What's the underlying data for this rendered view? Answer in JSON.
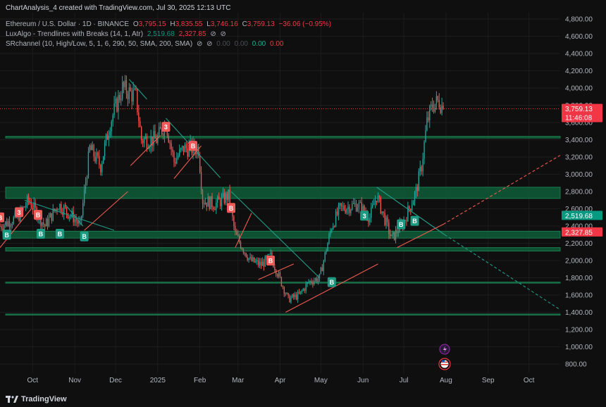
{
  "header": {
    "author_line": "ChartAnalysis_4 created with TradingView.com, Jul 30, 2025 12:13 UTC",
    "symbol": "Ethereum / U.S. Dollar · 1D · BINANCE",
    "o_label": "O",
    "o_value": "3,795.15",
    "h_label": "H",
    "h_value": "3,835.55",
    "l_label": "L",
    "l_value": "3,746.16",
    "c_label": "C",
    "c_value": "3,759.13",
    "change": "−36.06 (−0.95%)",
    "ind1_name": "LuxAlgo - Trendlines with Breaks (14, 1, Atr)",
    "ind1_v1": "2,519.68",
    "ind1_v2": "2,327.85",
    "ind2_name": "SRchannel (10, High/Low, 5, 1, 6, 290, 50, SMA, 200, SMA)",
    "ind2_dim1": "0.00",
    "ind2_dim2": "0.00",
    "ind2_v1": "0.00",
    "ind2_v2": "0.00",
    "eye_icon_glyph": "⊘"
  },
  "footer": {
    "brand": "TradingView"
  },
  "colors": {
    "bg": "#0f0f0f",
    "up": "#26a69a",
    "down": "#ef5350",
    "zone": "#0e5c38",
    "zone_line": "#1b7a4f",
    "trend_up": "#f05a50",
    "trend_down": "#1f9e89"
  },
  "chart_data": {
    "type": "candlestick",
    "title": "Ethereum / U.S. Dollar · 1D · BINANCE",
    "y_range": [
      600,
      4900
    ],
    "y_ticks": [
      800,
      1000,
      1200,
      1400,
      1600,
      1800,
      2000,
      2200,
      2400,
      2600,
      2800,
      3000,
      3200,
      3400,
      3600,
      3800,
      4000,
      4200,
      4400,
      4600,
      4800
    ],
    "y_tick_labels": [
      "800.00",
      "1,000.00",
      "1,200.00",
      "1,400.00",
      "1,600.00",
      "1,800.00",
      "2,000.00",
      "2,200.00",
      "2,400.00",
      "2,600.00",
      "2,800.00",
      "3,000.00",
      "3,200.00",
      "3,400.00",
      "3,600.00",
      "3,800.00",
      "4,000.00",
      "4,200.00",
      "4,400.00",
      "4,600.00",
      "4,800.00"
    ],
    "x_range": [
      "2024-09-07",
      "2025-10-24"
    ],
    "x_ticks": [
      {
        "label": "Oct",
        "date": "2024-10-01"
      },
      {
        "label": "Nov",
        "date": "2024-11-01"
      },
      {
        "label": "Dec",
        "date": "2024-12-01"
      },
      {
        "label": "2025",
        "date": "2025-01-01"
      },
      {
        "label": "Feb",
        "date": "2025-02-01"
      },
      {
        "label": "Mar",
        "date": "2025-03-01"
      },
      {
        "label": "Apr",
        "date": "2025-04-01"
      },
      {
        "label": "May",
        "date": "2025-05-01"
      },
      {
        "label": "Jun",
        "date": "2025-06-01"
      },
      {
        "label": "Jul",
        "date": "2025-07-01"
      },
      {
        "label": "Aug",
        "date": "2025-08-01"
      },
      {
        "label": "Sep",
        "date": "2025-09-01"
      },
      {
        "label": "Oct",
        "date": "2025-10-01"
      }
    ],
    "start_date": "2024-09-07",
    "close_path": [
      [
        "2024-09-07",
        2400
      ],
      [
        "2024-09-20",
        2500
      ],
      [
        "2024-09-28",
        2700
      ],
      [
        "2024-10-10",
        2400
      ],
      [
        "2024-10-20",
        2650
      ],
      [
        "2024-10-31",
        2500
      ],
      [
        "2024-11-05",
        2400
      ],
      [
        "2024-11-12",
        3300
      ],
      [
        "2024-11-20",
        3100
      ],
      [
        "2024-11-27",
        3600
      ],
      [
        "2024-12-06",
        4000
      ],
      [
        "2024-12-16",
        3900
      ],
      [
        "2024-12-20",
        3400
      ],
      [
        "2024-12-31",
        3400
      ],
      [
        "2025-01-07",
        3600
      ],
      [
        "2025-01-13",
        3150
      ],
      [
        "2025-01-20",
        3300
      ],
      [
        "2025-01-31",
        3300
      ],
      [
        "2025-02-03",
        2700
      ],
      [
        "2025-02-12",
        2650
      ],
      [
        "2025-02-22",
        2750
      ],
      [
        "2025-02-27",
        2300
      ],
      [
        "2025-03-10",
        2000
      ],
      [
        "2025-03-18",
        1950
      ],
      [
        "2025-03-25",
        2050
      ],
      [
        "2025-04-07",
        1550
      ],
      [
        "2025-04-15",
        1600
      ],
      [
        "2025-04-22",
        1750
      ],
      [
        "2025-04-30",
        1800
      ],
      [
        "2025-05-09",
        2400
      ],
      [
        "2025-05-15",
        2600
      ],
      [
        "2025-05-28",
        2650
      ],
      [
        "2025-06-06",
        2500
      ],
      [
        "2025-06-11",
        2750
      ],
      [
        "2025-06-22",
        2250
      ],
      [
        "2025-07-01",
        2450
      ],
      [
        "2025-07-10",
        2800
      ],
      [
        "2025-07-14",
        3100
      ],
      [
        "2025-07-18",
        3600
      ],
      [
        "2025-07-22",
        3800
      ],
      [
        "2025-07-27",
        3850
      ],
      [
        "2025-07-30",
        3759
      ]
    ],
    "sr_zones": [
      {
        "low": 3420,
        "high": 3440
      },
      {
        "low": 2720,
        "high": 2850
      },
      {
        "low": 2260,
        "high": 2340
      },
      {
        "low": 2110,
        "high": 2150
      },
      {
        "low": 1740,
        "high": 1750
      },
      {
        "low": 1370,
        "high": 1380
      }
    ],
    "trendlines": [
      {
        "kind": "down",
        "from": [
          "2024-09-25",
          2700
        ],
        "to": [
          "2024-11-30",
          2350
        ]
      },
      {
        "kind": "down",
        "from": [
          "2024-10-25",
          2650
        ],
        "to": [
          "2024-11-07",
          2400
        ]
      },
      {
        "kind": "down",
        "from": [
          "2024-12-11",
          4100
        ],
        "to": [
          "2024-12-24",
          3870
        ]
      },
      {
        "kind": "down",
        "from": [
          "2025-01-07",
          3650
        ],
        "to": [
          "2025-02-16",
          2960
        ]
      },
      {
        "kind": "down",
        "from": [
          "2025-02-24",
          2800
        ],
        "to": [
          "2025-04-30",
          1800
        ]
      },
      {
        "kind": "down",
        "from": [
          "2025-06-11",
          2850
        ],
        "to": [
          "2025-07-31",
          2300
        ]
      },
      {
        "kind": "down_ext",
        "from": [
          "2025-07-31",
          2300
        ],
        "to": [
          "2025-10-24",
          1430
        ]
      },
      {
        "kind": "up",
        "from": [
          "2024-09-07",
          2150
        ],
        "to": [
          "2024-09-30",
          2600
        ]
      },
      {
        "kind": "up",
        "from": [
          "2024-11-08",
          2350
        ],
        "to": [
          "2024-12-10",
          2800
        ]
      },
      {
        "kind": "up",
        "from": [
          "2024-12-12",
          3100
        ],
        "to": [
          "2025-01-03",
          3450
        ]
      },
      {
        "kind": "up",
        "from": [
          "2025-01-13",
          2950
        ],
        "to": [
          "2025-02-02",
          3330
        ]
      },
      {
        "kind": "up",
        "from": [
          "2025-02-27",
          2150
        ],
        "to": [
          "2025-03-11",
          2550
        ]
      },
      {
        "kind": "up",
        "from": [
          "2025-03-16",
          1780
        ],
        "to": [
          "2025-04-11",
          1960
        ]
      },
      {
        "kind": "up",
        "from": [
          "2025-04-05",
          1400
        ],
        "to": [
          "2025-06-12",
          1960
        ]
      },
      {
        "kind": "up",
        "from": [
          "2025-06-26",
          2150
        ],
        "to": [
          "2025-07-30",
          2420
        ]
      },
      {
        "kind": "up_ext",
        "from": [
          "2025-07-30",
          2420
        ],
        "to": [
          "2025-10-24",
          3220
        ]
      }
    ],
    "signals": [
      {
        "type": "B",
        "date": "2024-09-07",
        "price": 2500,
        "dir": "down"
      },
      {
        "type": "3",
        "date": "2024-09-21",
        "price": 2560,
        "dir": "down"
      },
      {
        "type": "B",
        "date": "2024-10-05",
        "price": 2530,
        "dir": "down"
      },
      {
        "type": "B",
        "date": "2024-09-12",
        "price": 2300,
        "dir": "up"
      },
      {
        "type": "B",
        "date": "2024-10-07",
        "price": 2310,
        "dir": "up"
      },
      {
        "type": "B",
        "date": "2024-10-21",
        "price": 2310,
        "dir": "up"
      },
      {
        "type": "B",
        "date": "2024-11-08",
        "price": 2280,
        "dir": "up"
      },
      {
        "type": "3",
        "date": "2025-01-07",
        "price": 3550,
        "dir": "down"
      },
      {
        "type": "B",
        "date": "2025-01-27",
        "price": 3330,
        "dir": "down"
      },
      {
        "type": "B",
        "date": "2025-02-24",
        "price": 2610,
        "dir": "down"
      },
      {
        "type": "B",
        "date": "2025-03-25",
        "price": 2000,
        "dir": "down"
      },
      {
        "type": "B",
        "date": "2025-05-09",
        "price": 1750,
        "dir": "up"
      },
      {
        "type": "3",
        "date": "2025-06-02",
        "price": 2520,
        "dir": "up"
      },
      {
        "type": "B",
        "date": "2025-06-29",
        "price": 2420,
        "dir": "up"
      },
      {
        "type": "B",
        "date": "2025-07-09",
        "price": 2460,
        "dir": "up"
      }
    ],
    "price_tags": [
      {
        "label": "3,759.13",
        "sub": "11:46:08",
        "price": 3759.13,
        "color": "#f23645"
      },
      {
        "label": "2,519.68",
        "price": 2519.68,
        "color": "#089981"
      },
      {
        "label": "2,327.85",
        "price": 2327.85,
        "color": "#f23645"
      }
    ],
    "last_price": 3759.13,
    "event_icons": [
      "lightning-icon",
      "us-flag-icon"
    ]
  }
}
